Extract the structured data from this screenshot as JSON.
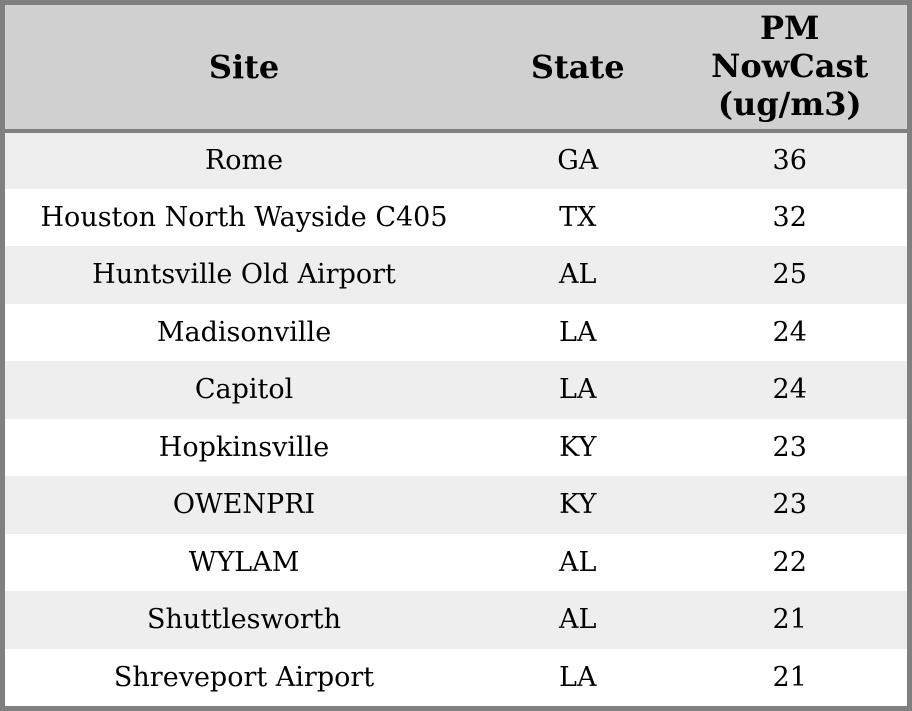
{
  "table": {
    "columns": [
      {
        "id": "site",
        "label": "Site"
      },
      {
        "id": "state",
        "label": "State"
      },
      {
        "id": "pm_nowcast",
        "label": "PM NowCast (ug/m3)"
      }
    ],
    "rows": [
      {
        "site": "Rome",
        "state": "GA",
        "pm_nowcast": "36"
      },
      {
        "site": "Houston North Wayside C405",
        "state": "TX",
        "pm_nowcast": "32"
      },
      {
        "site": "Huntsville Old Airport",
        "state": "AL",
        "pm_nowcast": "25"
      },
      {
        "site": "Madisonville",
        "state": "LA",
        "pm_nowcast": "24"
      },
      {
        "site": "Capitol",
        "state": "LA",
        "pm_nowcast": "24"
      },
      {
        "site": "Hopkinsville",
        "state": "KY",
        "pm_nowcast": "23"
      },
      {
        "site": "OWENPRI",
        "state": "KY",
        "pm_nowcast": "23"
      },
      {
        "site": "WYLAM",
        "state": "AL",
        "pm_nowcast": "22"
      },
      {
        "site": "Shuttlesworth",
        "state": "AL",
        "pm_nowcast": "21"
      },
      {
        "site": "Shreveport Airport",
        "state": "LA",
        "pm_nowcast": "21"
      }
    ]
  },
  "colors": {
    "header_bg": "#d0d0d0",
    "row_stripe_bg": "#eeeeee",
    "row_bg": "#ffffff",
    "border": "#808080",
    "text": "#000000"
  },
  "chart_data": {
    "type": "table",
    "title": "",
    "columns": [
      "Site",
      "State",
      "PM NowCast (ug/m3)"
    ],
    "rows": [
      [
        "Rome",
        "GA",
        36
      ],
      [
        "Houston North Wayside C405",
        "TX",
        32
      ],
      [
        "Huntsville Old Airport",
        "AL",
        25
      ],
      [
        "Madisonville",
        "LA",
        24
      ],
      [
        "Capitol",
        "LA",
        24
      ],
      [
        "Hopkinsville",
        "KY",
        23
      ],
      [
        "OWENPRI",
        "KY",
        23
      ],
      [
        "WYLAM",
        "AL",
        22
      ],
      [
        "Shuttlesworth",
        "AL",
        21
      ],
      [
        "Shreveport Airport",
        "LA",
        21
      ]
    ],
    "layout": {
      "header_background": "#d0d0d0",
      "zebra_stripe": true,
      "text_align": "center"
    }
  }
}
